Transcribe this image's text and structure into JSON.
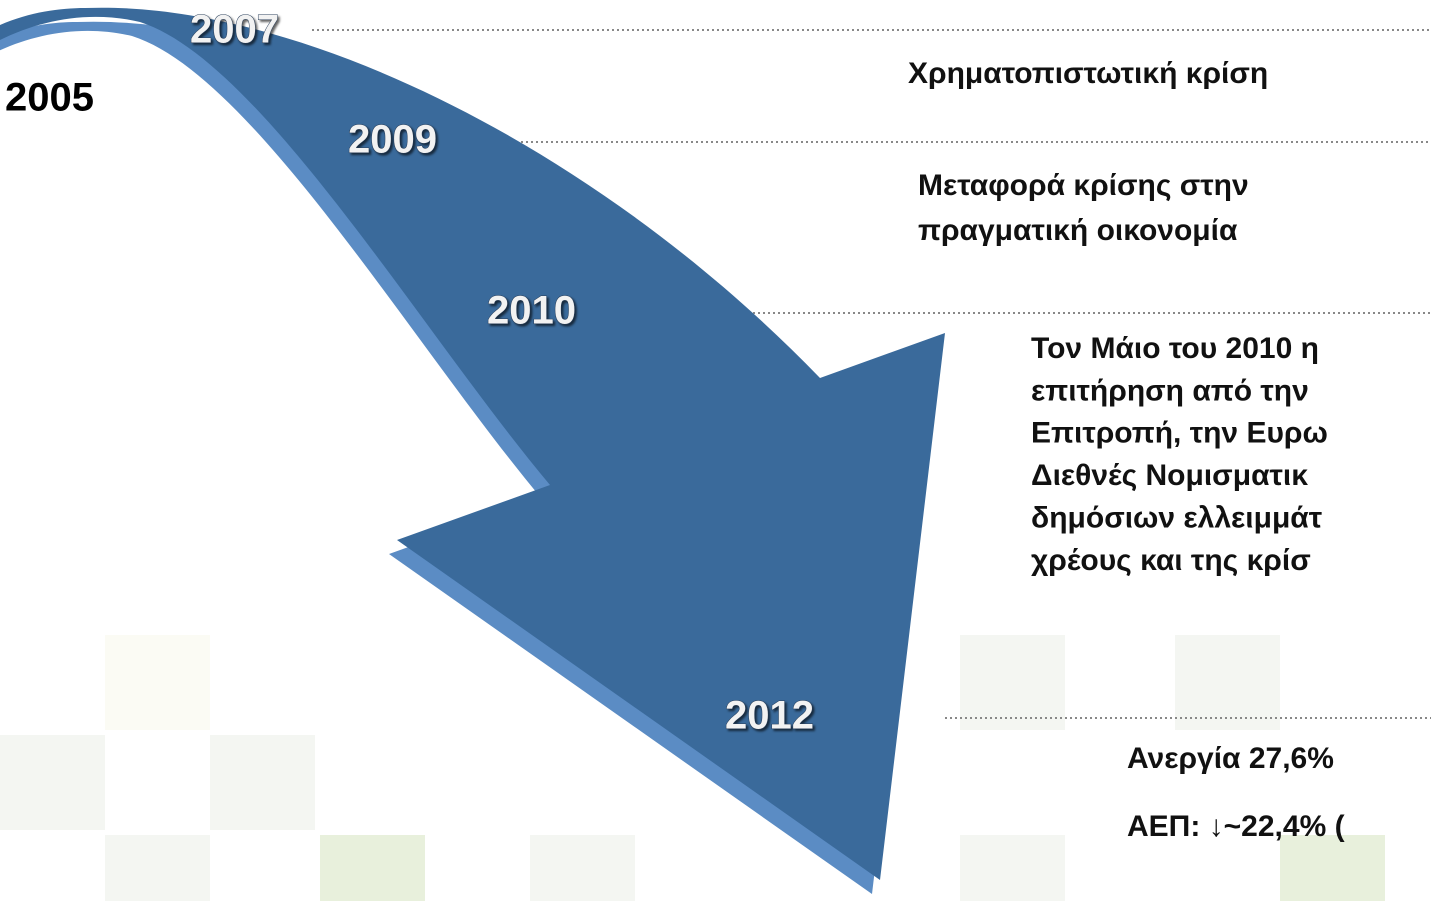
{
  "years": [
    "2005",
    "2007",
    "2009",
    "2010",
    "2012"
  ],
  "events": [
    [
      "Χρηματοπιστωτική κρίση"
    ],
    [
      "Μεταφορά κρίσης  στην",
      "πραγματική οικονομία"
    ],
    [
      "Τον Μάιο του 2010 η",
      "επιτήρηση από την",
      "Επιτροπή, την Ευρω",
      "Διεθνές Νομισματικ",
      "δημόσιων ελλειμμάτ",
      "χρέους και της κρίσ"
    ],
    [
      "Ανεργία 27,6%",
      "ΑΕΠ: ↓~22,4% ("
    ]
  ]
}
